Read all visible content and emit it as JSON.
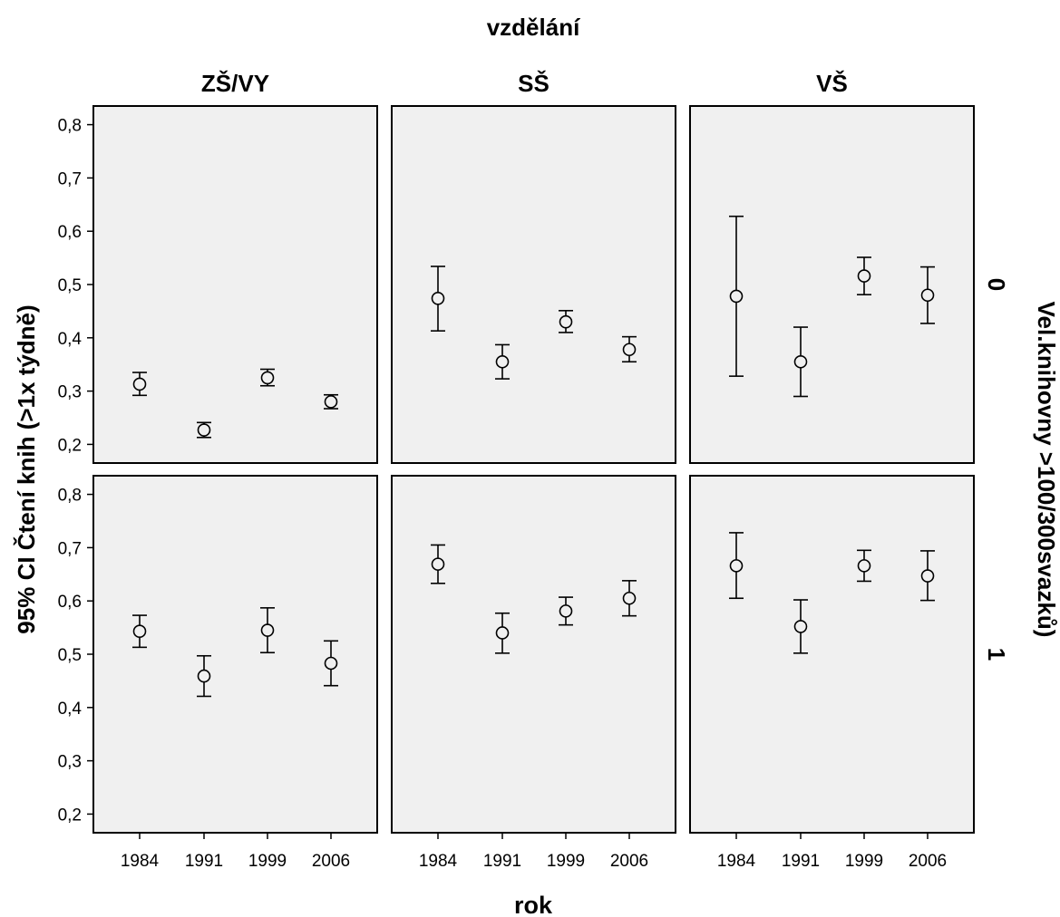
{
  "chart_data": {
    "type": "scatter",
    "title": "",
    "column_title": "vzdělání",
    "row_title": "Vel.knihovny >100/300svazků)",
    "ylabel": "95% CI Čtení knih (>1x týdně)",
    "xlabel": "rok",
    "columns": [
      "ZŠ/VY",
      "SŠ",
      "VŠ"
    ],
    "rows": [
      "0",
      "1"
    ],
    "categories": [
      "1984",
      "1991",
      "1999",
      "2006"
    ],
    "ylim": [
      0.165,
      0.835
    ],
    "yticks": [
      0.2,
      0.3,
      0.4,
      0.5,
      0.6,
      0.7,
      0.8
    ],
    "ytick_labels": [
      "0,2",
      "0,3",
      "0,4",
      "0,5",
      "0,6",
      "0,7",
      "0,8"
    ],
    "grid": false,
    "panels": [
      {
        "row": "0",
        "column": "ZŠ/VY",
        "mean": [
          0.313,
          0.227,
          0.325,
          0.28
        ],
        "lower": [
          0.292,
          0.213,
          0.31,
          0.267
        ],
        "upper": [
          0.335,
          0.241,
          0.341,
          0.293
        ]
      },
      {
        "row": "0",
        "column": "SŠ",
        "mean": [
          0.474,
          0.355,
          0.43,
          0.378
        ],
        "lower": [
          0.413,
          0.323,
          0.41,
          0.355
        ],
        "upper": [
          0.534,
          0.387,
          0.451,
          0.402
        ]
      },
      {
        "row": "0",
        "column": "VŠ",
        "mean": [
          0.478,
          0.355,
          0.516,
          0.48
        ],
        "lower": [
          0.328,
          0.29,
          0.481,
          0.427
        ],
        "upper": [
          0.628,
          0.42,
          0.551,
          0.533
        ]
      },
      {
        "row": "1",
        "column": "ZŠ/VY",
        "mean": [
          0.543,
          0.459,
          0.545,
          0.483
        ],
        "lower": [
          0.513,
          0.421,
          0.503,
          0.441
        ],
        "upper": [
          0.573,
          0.497,
          0.587,
          0.525
        ]
      },
      {
        "row": "1",
        "column": "SŠ",
        "mean": [
          0.669,
          0.54,
          0.581,
          0.605
        ],
        "lower": [
          0.633,
          0.502,
          0.555,
          0.572
        ],
        "upper": [
          0.705,
          0.577,
          0.607,
          0.638
        ]
      },
      {
        "row": "1",
        "column": "VŠ",
        "mean": [
          0.666,
          0.552,
          0.666,
          0.647
        ],
        "lower": [
          0.605,
          0.502,
          0.637,
          0.601
        ],
        "upper": [
          0.728,
          0.602,
          0.695,
          0.694
        ]
      }
    ]
  }
}
